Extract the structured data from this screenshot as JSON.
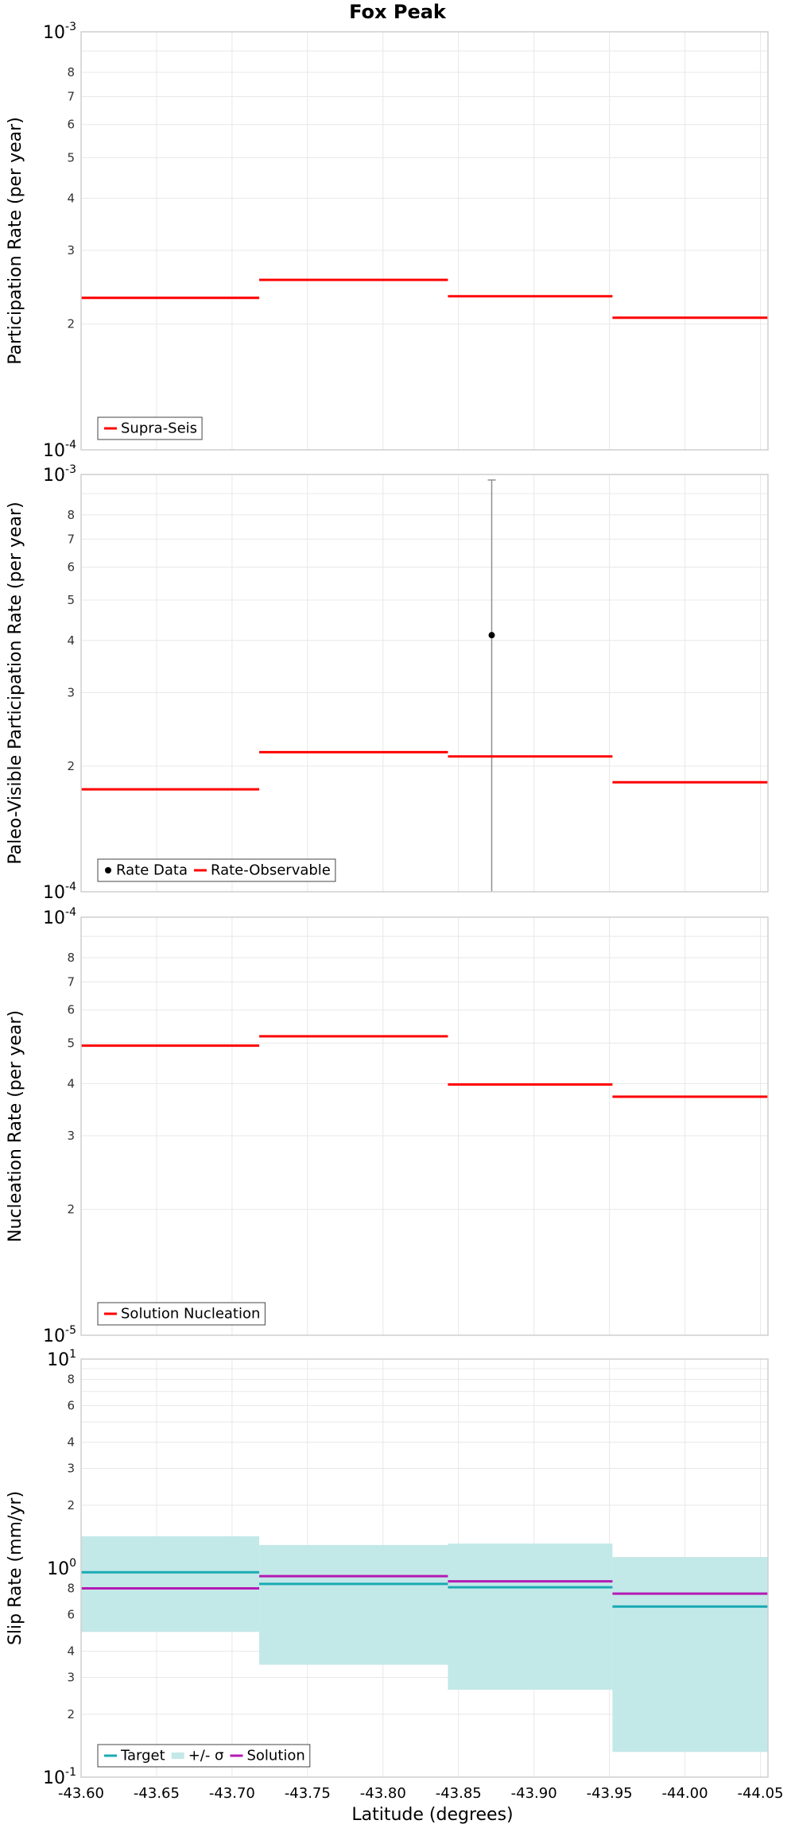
{
  "figure": {
    "title": "Fox Peak",
    "xlabel": "Latitude (degrees)",
    "xticks": [
      "-43.60",
      "-43.65",
      "-43.70",
      "-43.75",
      "-43.80",
      "-43.85",
      "-43.90",
      "-43.95",
      "-44.00",
      "-44.05"
    ]
  },
  "colors": {
    "red": "#ff0000",
    "teal": "#1aaab4",
    "magenta": "#b41ab4",
    "band": "#c3e8e8",
    "grid": "#e8e8e8",
    "frame": "#cfcfcf",
    "errorbar": "#909090",
    "black": "#000000"
  },
  "chart_data": [
    {
      "type": "line",
      "step": true,
      "ylabel": "Participation Rate (per year)",
      "yscale": "log",
      "ylim": [
        0.0001,
        0.001
      ],
      "xlim": [
        -43.6,
        -44.055
      ],
      "decade_labels": [
        {
          "value": 0.001,
          "base": "10",
          "exp": "-3"
        },
        {
          "value": 0.0001,
          "base": "10",
          "exp": "-4"
        }
      ],
      "minor_labels": [
        {
          "value": 0.0008,
          "label": "8"
        },
        {
          "value": 0.0007,
          "label": "7"
        },
        {
          "value": 0.0006,
          "label": "6"
        },
        {
          "value": 0.0005,
          "label": "5"
        },
        {
          "value": 0.0004,
          "label": "4"
        },
        {
          "value": 0.0003,
          "label": "3"
        },
        {
          "value": 0.0002,
          "label": "2"
        }
      ],
      "series": [
        {
          "name": "Supra-Seis",
          "kind": "step",
          "color": "red",
          "segments": [
            {
              "x0": -43.6,
              "x1": -43.718,
              "y": 0.000231
            },
            {
              "x0": -43.718,
              "x1": -43.843,
              "y": 0.000255
            },
            {
              "x0": -43.843,
              "x1": -43.952,
              "y": 0.000233
            },
            {
              "x0": -43.952,
              "x1": -44.055,
              "y": 0.000207
            }
          ]
        }
      ],
      "legend": {
        "position": "bottom-left",
        "entries": [
          {
            "label": "Supra-Seis",
            "symbol": "line",
            "color": "red"
          }
        ]
      }
    },
    {
      "type": "line",
      "step": true,
      "ylabel": "Paleo-Visible Participation Rate (per year)",
      "yscale": "log",
      "ylim": [
        0.0001,
        0.001
      ],
      "xlim": [
        -43.6,
        -44.055
      ],
      "decade_labels": [
        {
          "value": 0.001,
          "base": "10",
          "exp": "-3"
        },
        {
          "value": 0.0001,
          "base": "10",
          "exp": "-4"
        }
      ],
      "minor_labels": [
        {
          "value": 0.0008,
          "label": "8"
        },
        {
          "value": 0.0007,
          "label": "7"
        },
        {
          "value": 0.0006,
          "label": "6"
        },
        {
          "value": 0.0005,
          "label": "5"
        },
        {
          "value": 0.0004,
          "label": "4"
        },
        {
          "value": 0.0003,
          "label": "3"
        },
        {
          "value": 0.0002,
          "label": "2"
        }
      ],
      "series": [
        {
          "name": "Rate Data",
          "kind": "point",
          "color": "black",
          "points": [
            {
              "x": -43.872,
              "y": 0.000412,
              "ylow": 0.0001,
              "yhigh": 0.00097
            }
          ]
        },
        {
          "name": "Rate-Observable",
          "kind": "step",
          "color": "red",
          "segments": [
            {
              "x0": -43.6,
              "x1": -43.718,
              "y": 0.000176
            },
            {
              "x0": -43.718,
              "x1": -43.843,
              "y": 0.000216
            },
            {
              "x0": -43.843,
              "x1": -43.952,
              "y": 0.000211
            },
            {
              "x0": -43.952,
              "x1": -44.055,
              "y": 0.000183
            }
          ]
        }
      ],
      "legend": {
        "position": "bottom-left",
        "entries": [
          {
            "label": "Rate Data",
            "symbol": "dot",
            "color": "black"
          },
          {
            "label": "Rate-Observable",
            "symbol": "line",
            "color": "red"
          }
        ]
      }
    },
    {
      "type": "line",
      "step": true,
      "ylabel": "Nucleation Rate (per year)",
      "yscale": "log",
      "ylim": [
        1e-05,
        0.0001
      ],
      "xlim": [
        -43.6,
        -44.055
      ],
      "decade_labels": [
        {
          "value": 0.0001,
          "base": "10",
          "exp": "-4"
        },
        {
          "value": 1e-05,
          "base": "10",
          "exp": "-5"
        }
      ],
      "minor_labels": [
        {
          "value": 8e-05,
          "label": "8"
        },
        {
          "value": 7e-05,
          "label": "7"
        },
        {
          "value": 6e-05,
          "label": "6"
        },
        {
          "value": 5e-05,
          "label": "5"
        },
        {
          "value": 4e-05,
          "label": "4"
        },
        {
          "value": 3e-05,
          "label": "3"
        },
        {
          "value": 2e-05,
          "label": "2"
        }
      ],
      "series": [
        {
          "name": "Solution Nucleation",
          "kind": "step",
          "color": "red",
          "segments": [
            {
              "x0": -43.6,
              "x1": -43.718,
              "y": 4.93e-05
            },
            {
              "x0": -43.718,
              "x1": -43.843,
              "y": 5.19e-05
            },
            {
              "x0": -43.843,
              "x1": -43.952,
              "y": 3.98e-05
            },
            {
              "x0": -43.952,
              "x1": -44.055,
              "y": 3.72e-05
            }
          ]
        }
      ],
      "legend": {
        "position": "bottom-left",
        "entries": [
          {
            "label": "Solution Nucleation",
            "symbol": "line",
            "color": "red"
          }
        ]
      }
    },
    {
      "type": "line",
      "step": true,
      "ylabel": "Slip Rate (mm/yr)",
      "yscale": "log",
      "ylim": [
        0.1,
        10
      ],
      "xlim": [
        -43.6,
        -44.055
      ],
      "decade_labels": [
        {
          "value": 10,
          "base": "10",
          "exp": "1"
        },
        {
          "value": 1,
          "base": "10",
          "exp": "0"
        },
        {
          "value": 0.1,
          "base": "10",
          "exp": "-1"
        }
      ],
      "minor_labels": [
        {
          "value": 8,
          "label": "8"
        },
        {
          "value": 6,
          "label": "6"
        },
        {
          "value": 4,
          "label": "4"
        },
        {
          "value": 3,
          "label": "3"
        },
        {
          "value": 2,
          "label": "2"
        },
        {
          "value": 0.8,
          "label": "8"
        },
        {
          "value": 0.6,
          "label": "6"
        },
        {
          "value": 0.4,
          "label": "4"
        },
        {
          "value": 0.3,
          "label": "3"
        },
        {
          "value": 0.2,
          "label": "2"
        }
      ],
      "series": [
        {
          "name": "+/- σ",
          "kind": "band",
          "color": "band",
          "segments": [
            {
              "x0": -43.6,
              "x1": -43.718,
              "ylow": 0.495,
              "yhigh": 1.42
            },
            {
              "x0": -43.718,
              "x1": -43.843,
              "ylow": 0.345,
              "yhigh": 1.29
            },
            {
              "x0": -43.843,
              "x1": -43.952,
              "ylow": 0.262,
              "yhigh": 1.31
            },
            {
              "x0": -43.952,
              "x1": -44.055,
              "ylow": 0.132,
              "yhigh": 1.13
            }
          ]
        },
        {
          "name": "Target",
          "kind": "step",
          "color": "teal",
          "segments": [
            {
              "x0": -43.6,
              "x1": -43.718,
              "y": 0.955
            },
            {
              "x0": -43.718,
              "x1": -43.843,
              "y": 0.84
            },
            {
              "x0": -43.843,
              "x1": -43.952,
              "y": 0.81
            },
            {
              "x0": -43.952,
              "x1": -44.055,
              "y": 0.655
            }
          ]
        },
        {
          "name": "Solution",
          "kind": "step",
          "color": "magenta",
          "segments": [
            {
              "x0": -43.6,
              "x1": -43.718,
              "y": 0.8
            },
            {
              "x0": -43.718,
              "x1": -43.843,
              "y": 0.915
            },
            {
              "x0": -43.843,
              "x1": -43.952,
              "y": 0.865
            },
            {
              "x0": -43.952,
              "x1": -44.055,
              "y": 0.755
            }
          ]
        }
      ],
      "legend": {
        "position": "bottom-left",
        "entries": [
          {
            "label": "Target",
            "symbol": "line",
            "color": "teal"
          },
          {
            "label": "+/- σ",
            "symbol": "block",
            "color": "band"
          },
          {
            "label": "Solution",
            "symbol": "line",
            "color": "magenta"
          }
        ]
      }
    }
  ]
}
